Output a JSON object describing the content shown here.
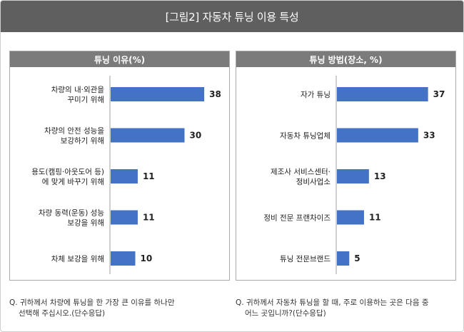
{
  "header": {
    "title": "[그림2] 자동차 튜닝 이용 특성"
  },
  "chart_data": [
    {
      "type": "bar",
      "orientation": "horizontal",
      "title": "튜닝 이유(%)",
      "categories": [
        [
          "차량의 내·외관을",
          "꾸미기 위해"
        ],
        [
          "차량의 안전 성능을",
          "보강하기 위해"
        ],
        [
          "용도(캠핑·아웃도어 등)",
          "에 맞게 바꾸기 위해"
        ],
        [
          "차량 동력(운동) 성능",
          "보강을 위해"
        ],
        [
          "차체 보강을 위해"
        ]
      ],
      "values": [
        38,
        30,
        11,
        11,
        10
      ],
      "xlim": [
        0,
        50
      ],
      "grid": false,
      "bar_color": "#4472c4"
    },
    {
      "type": "bar",
      "orientation": "horizontal",
      "title": "튜닝 방법(장소, %)",
      "categories": [
        [
          "자가 튜닝"
        ],
        [
          "자동차 튜닝업체"
        ],
        [
          "제조사 서비스센터·",
          "정비사업소"
        ],
        [
          "정비 전문 프랜차이즈"
        ],
        [
          "튜닝 전문브랜드"
        ]
      ],
      "values": [
        37,
        33,
        13,
        11,
        5
      ],
      "xlim": [
        0,
        50
      ],
      "grid": false,
      "bar_color": "#4472c4"
    }
  ],
  "notes": {
    "left": [
      "Q. 귀하께서 차량에 튜닝을 한 가장 큰 이유를 하나만",
      "선택해 주십시오.(단수응답)"
    ],
    "right": [
      "Q. 귀하께서 자동차 튜닝을 할 때, 주로 이용하는 곳은 다음 중",
      "어느 곳입니까?(단수응답)"
    ]
  }
}
